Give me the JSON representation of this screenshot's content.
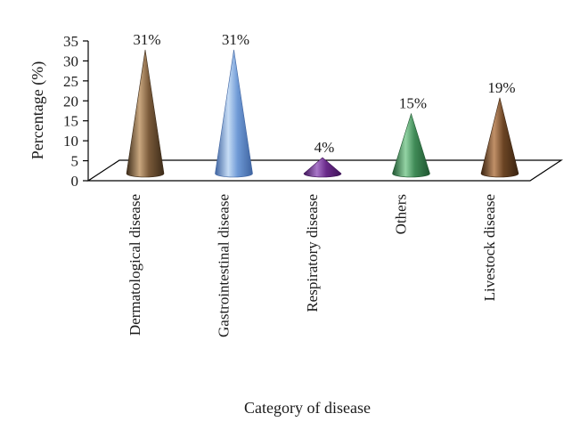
{
  "chart_data": {
    "type": "bar",
    "style": "3d-cone",
    "categories": [
      "Dermatological disease",
      "Gastrointestinal disease",
      "Respiratory disease",
      "Others",
      "Livestock disease"
    ],
    "values": [
      31,
      31,
      4,
      15,
      19
    ],
    "data_labels": [
      "31%",
      "31%",
      "4%",
      "15%",
      "19%"
    ],
    "xlabel": "Category of disease",
    "ylabel": "Percentage (%)",
    "ylim": [
      0,
      35
    ],
    "yticks": [
      0,
      5,
      10,
      15,
      20,
      25,
      30,
      35
    ],
    "grid": false,
    "legend": "none",
    "colors": [
      "#7a5a3a",
      "#6f9ad6",
      "#6a2a8a",
      "#3f8a56",
      "#6b4424"
    ],
    "highlight_colors": [
      "#c9a77f",
      "#c6dcf5",
      "#a877c8",
      "#93d3a4",
      "#c09068"
    ],
    "shadow_colors": [
      "#3b2a18",
      "#3e63a0",
      "#3e1357",
      "#1f5530",
      "#3a2310"
    ]
  }
}
